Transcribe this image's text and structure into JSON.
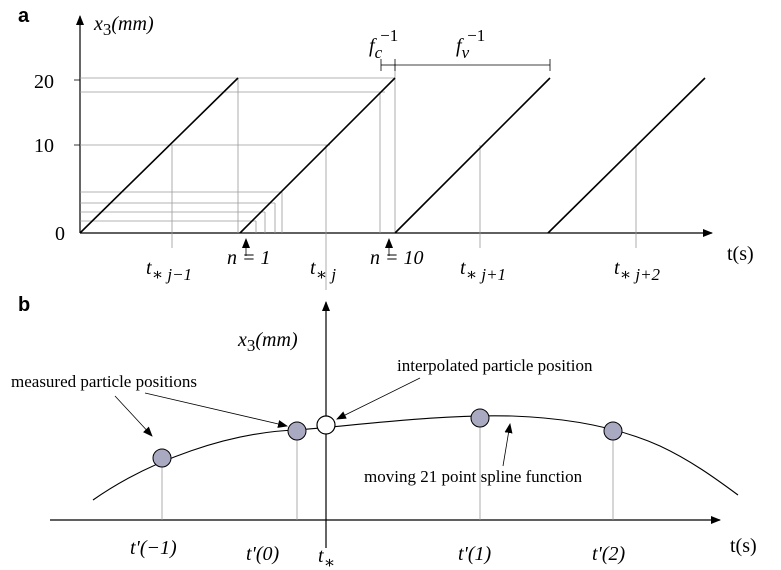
{
  "panel_a": {
    "letter": "a",
    "y_axis_label": "x",
    "y_axis_sub": "3",
    "y_axis_unit": "(mm)",
    "y_ticks": [
      "20",
      "10",
      "0"
    ],
    "x_axis_label": "t(s)",
    "period_c": "f",
    "period_c_sub": "c",
    "period_v": "f",
    "period_v_sub": "v",
    "period_exp": "−1",
    "marker_n1": "n = 1",
    "marker_n10": "n = 10",
    "times": [
      {
        "base": "t",
        "sub": "∗ j−1"
      },
      {
        "base": "t",
        "sub": "∗ j"
      },
      {
        "base": "t",
        "sub": "∗ j+1"
      },
      {
        "base": "t",
        "sub": "∗ j+2"
      }
    ]
  },
  "panel_b": {
    "letter": "b",
    "y_axis_label": "x",
    "y_axis_sub": "3",
    "y_axis_unit": "(mm)",
    "x_axis_label": "t(s)",
    "annotation_measured": "measured particle positions",
    "annotation_interpolated": "interpolated particle position",
    "annotation_spline": "moving 21 point spline function",
    "tstar": "t",
    "tstar_sub": "∗",
    "times": [
      "t'(−1)",
      "t'(0)",
      "t'(1)",
      "t'(2)"
    ]
  },
  "colors": {
    "measured_fill": "#a9a9c2",
    "guide": "#9a9a9a"
  }
}
